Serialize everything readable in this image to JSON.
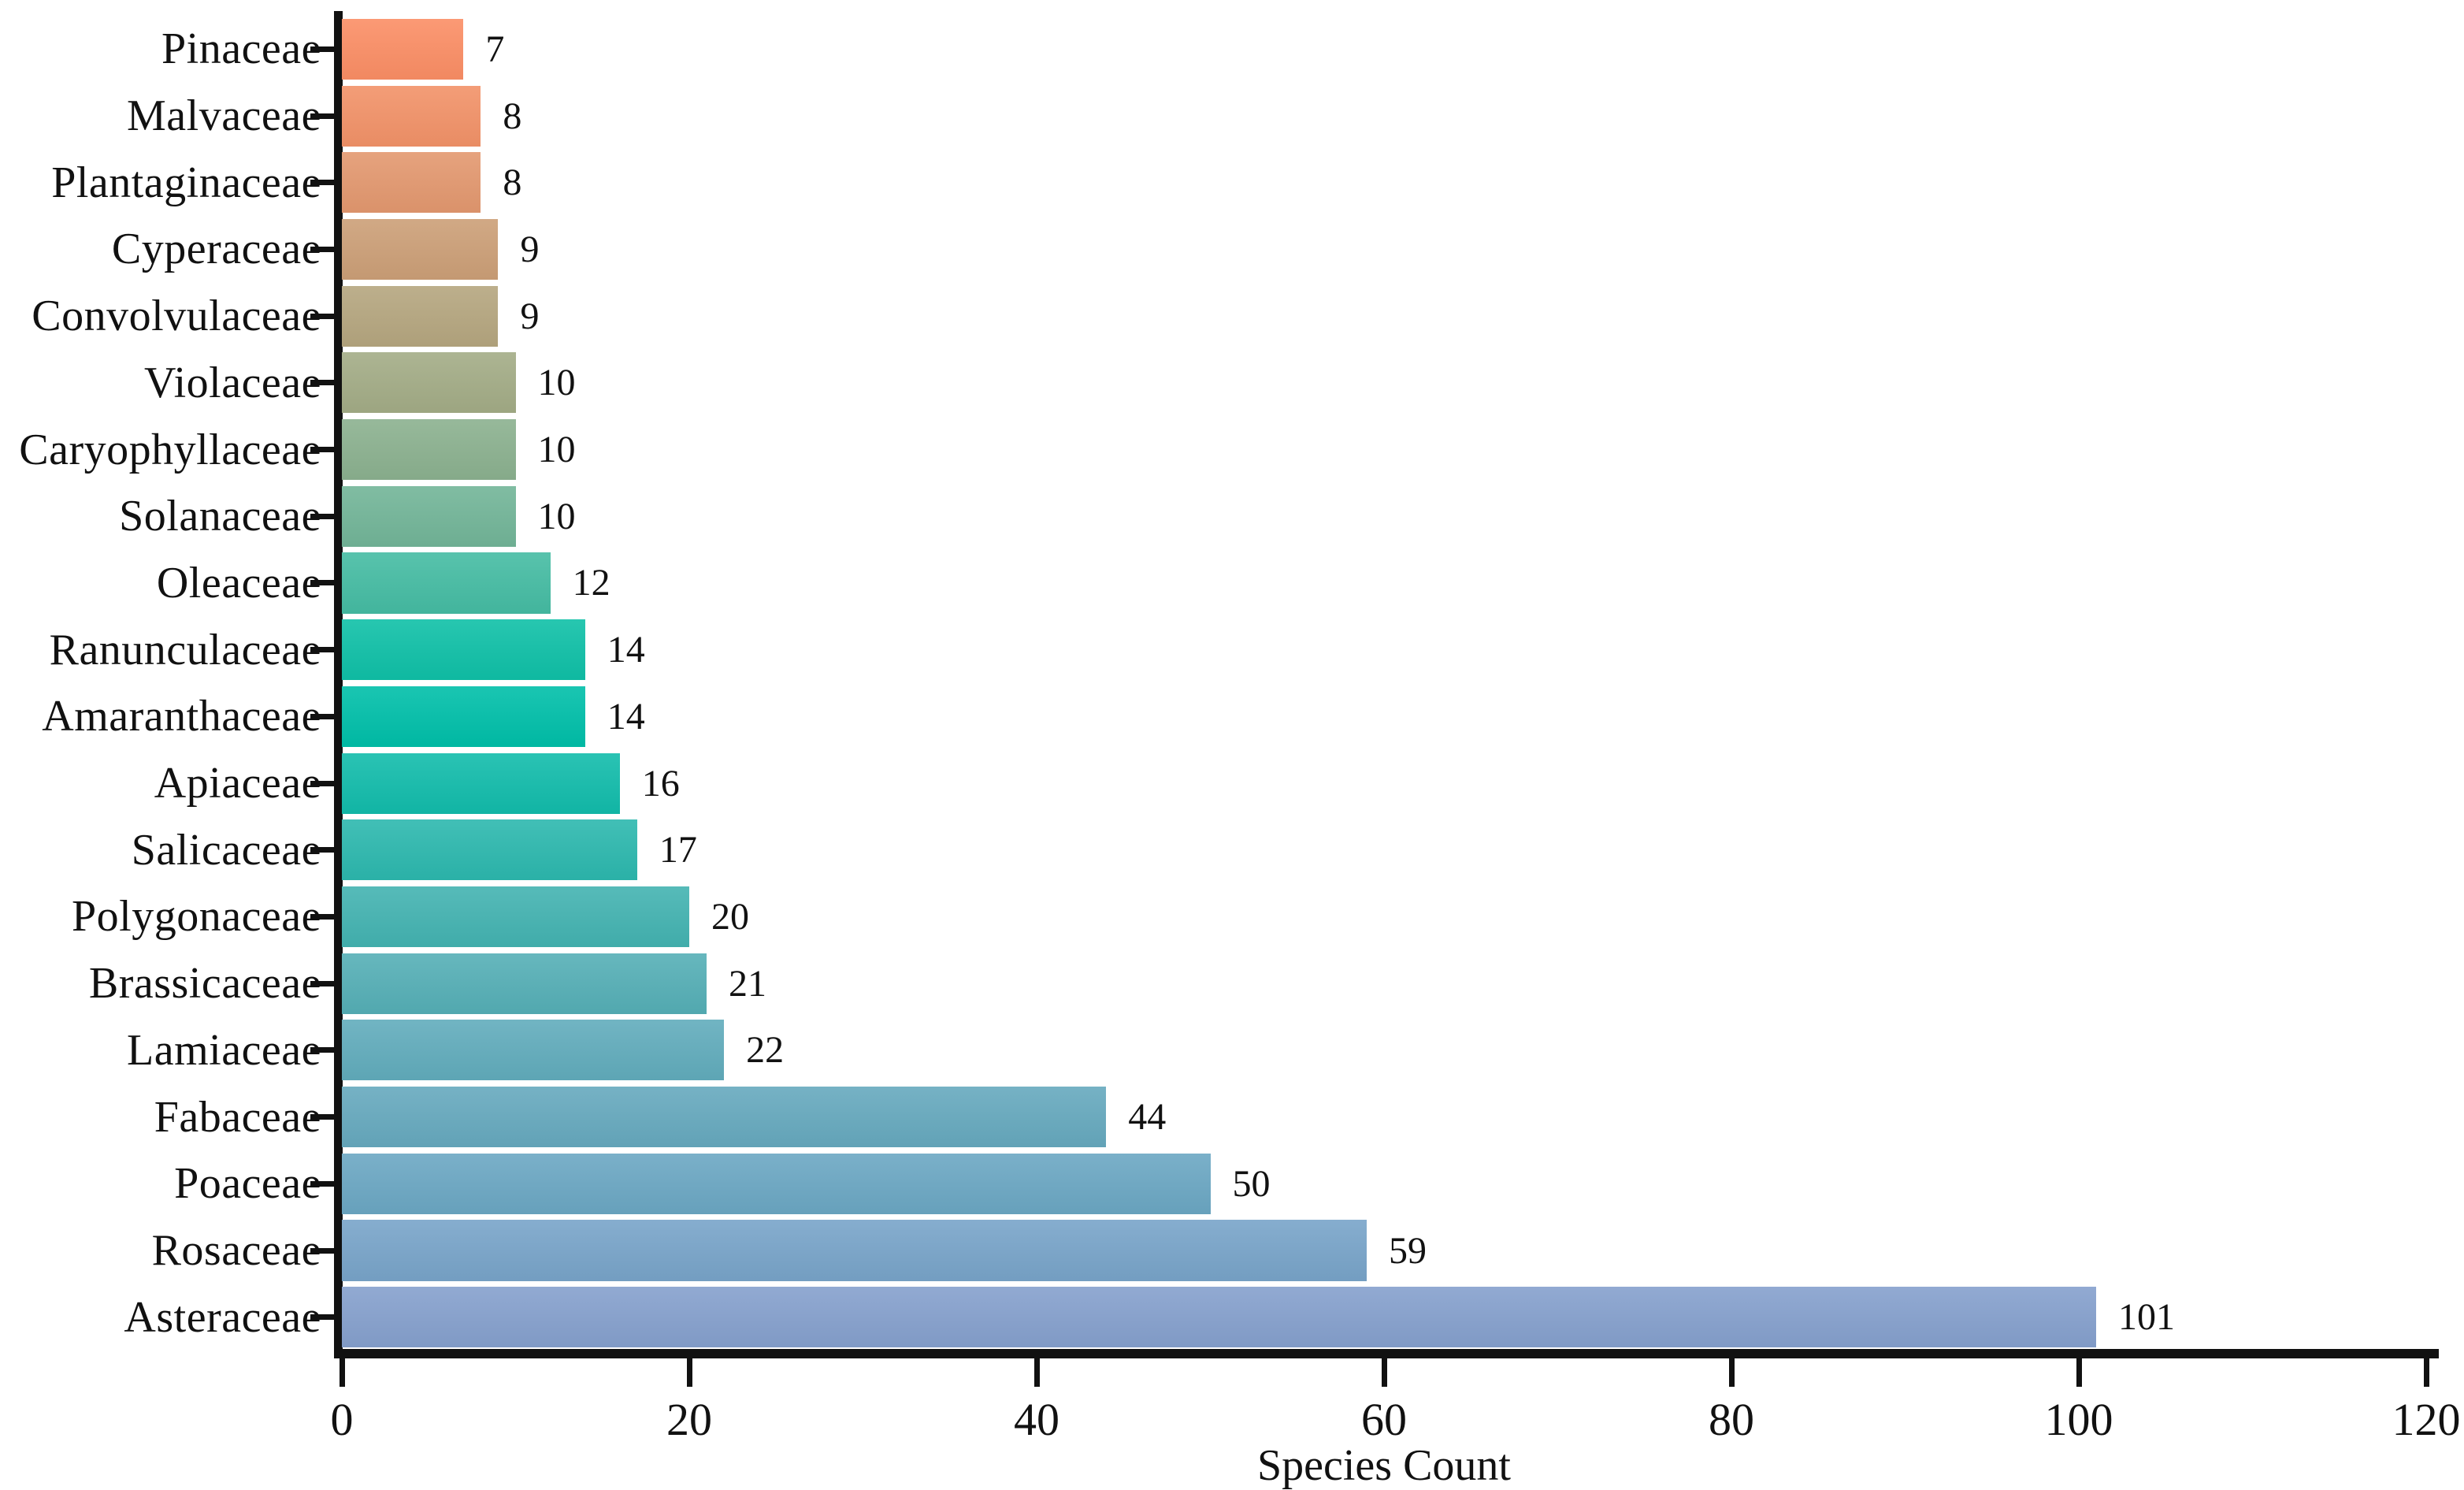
{
  "chart_data": {
    "type": "bar",
    "orientation": "horizontal",
    "xlabel": "Species Count",
    "ylabel": "",
    "title": "",
    "xlim": [
      0,
      120
    ],
    "x_ticks": [
      0,
      20,
      40,
      60,
      80,
      100,
      120
    ],
    "grid": false,
    "legend": "none",
    "categories": [
      "Pinaceae",
      "Malvaceae",
      "Plantaginaceae",
      "Cyperaceae",
      "Convolvulaceae",
      "Violaceae",
      "Caryophyllaceae",
      "Solanaceae",
      "Oleaceae",
      "Ranunculaceae",
      "Amaranthaceae",
      "Apiaceae",
      "Salicaceae",
      "Polygonaceae",
      "Brassicaceae",
      "Lamiaceae",
      "Fabaceae",
      "Poaceae",
      "Rosaceae",
      "Asteraceae"
    ],
    "values": [
      7,
      8,
      8,
      9,
      9,
      10,
      10,
      10,
      12,
      14,
      14,
      16,
      17,
      20,
      21,
      22,
      44,
      50,
      59,
      101
    ],
    "bar_colors": [
      "#FB8E65",
      "#F29268",
      "#E3986F",
      "#CC9F77",
      "#B5A67F",
      "#A3AC86",
      "#8BB18F",
      "#72B598",
      "#45BCA3",
      "#0FC0A7",
      "#00BFA9",
      "#12BCAB",
      "#2CB8AE",
      "#43B3B1",
      "#55AFB6",
      "#61ACBC",
      "#66A9BE",
      "#6BA7C3",
      "#78A4C9",
      "#85A0CD"
    ],
    "axis_color": "#111111",
    "text_color": "#111111",
    "background_color": "#ffffff"
  }
}
